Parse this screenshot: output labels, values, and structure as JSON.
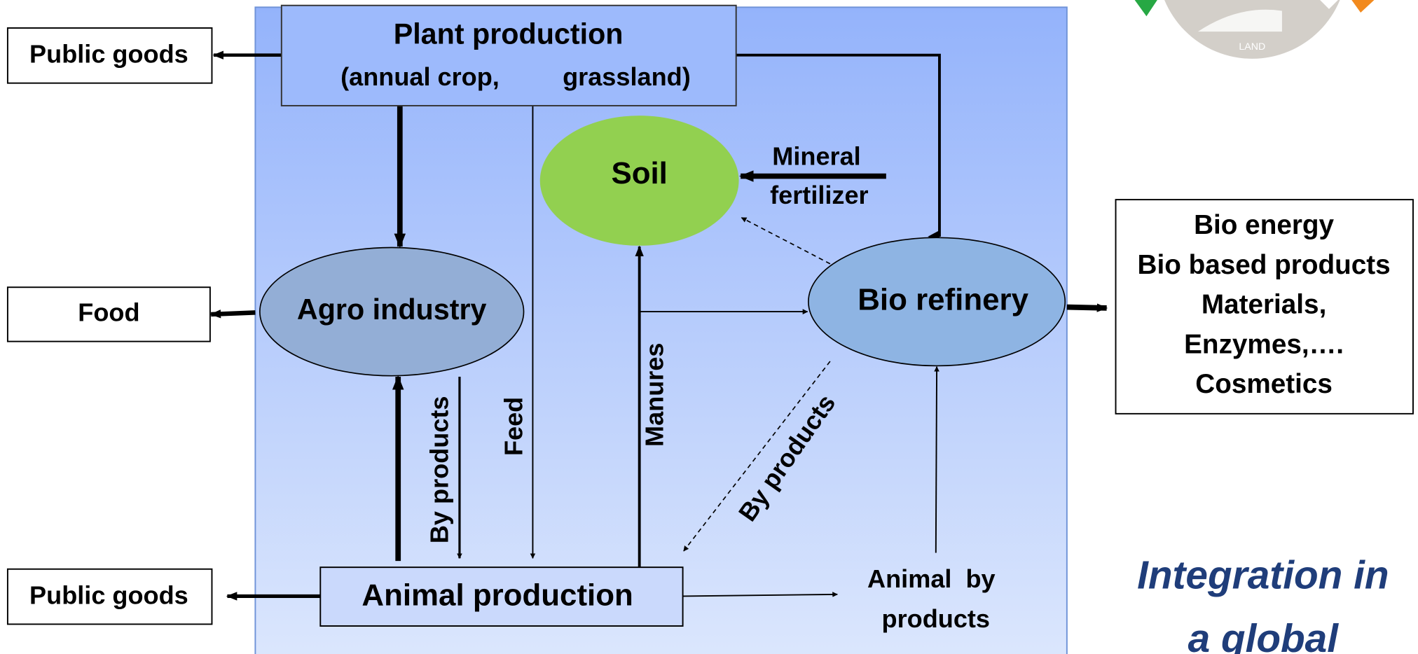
{
  "logo": {
    "text": "LAND"
  },
  "boxes": {
    "plant_production": {
      "title": "Plant production",
      "subtitle": "(annual crop,         grassland)"
    },
    "public_goods_top": {
      "label": "Public goods"
    },
    "food": {
      "label": "Food"
    },
    "public_goods_bottom": {
      "label": "Public goods"
    },
    "animal_production": {
      "label": "Animal production"
    },
    "bio_outputs": {
      "lines": [
        "Bio energy",
        "Bio based products",
        "Materials,",
        "Enzymes,….",
        "Cosmetics"
      ]
    }
  },
  "ellipses": {
    "agro_industry": {
      "label": "Agro industry"
    },
    "soil": {
      "label": "Soil"
    },
    "bio_refinery": {
      "label": "Bio refinery"
    }
  },
  "flow_labels": {
    "mineral_fertilizer": [
      "Mineral",
      "fertilizer"
    ],
    "animal_by_products": [
      "Animal  by",
      "products"
    ],
    "by_products_agro": "By products",
    "feed": "Feed",
    "manures": "Manures",
    "by_products_refinery": "By products"
  },
  "caption": {
    "lines": [
      "Integration in",
      "a global"
    ]
  }
}
